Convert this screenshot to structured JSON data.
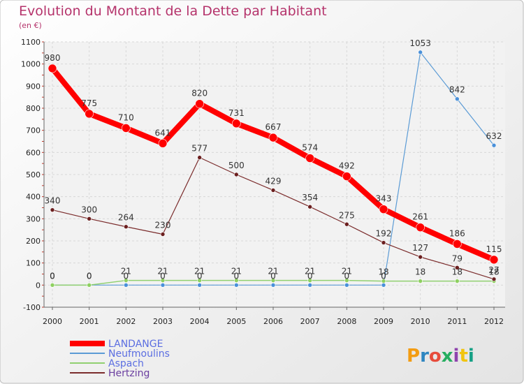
{
  "brand": {
    "text": "Proxiti",
    "colors": [
      "#f39c12",
      "#2e86c1",
      "#e74c3c",
      "#27ae60",
      "#8e44ad",
      "#f1c40f",
      "#16a085"
    ]
  },
  "chart_data": {
    "type": "line",
    "title": "Evolution du Montant de la Dette par Habitant",
    "subtitle": "(en €)",
    "x": [
      "2000",
      "2001",
      "2002",
      "2003",
      "2004",
      "2005",
      "2006",
      "2007",
      "2008",
      "2009",
      "2010",
      "2011",
      "2012"
    ],
    "ylim": [
      -100,
      1100
    ],
    "yticks": [
      -100,
      0,
      100,
      200,
      300,
      400,
      500,
      600,
      700,
      800,
      900,
      1000,
      1100
    ],
    "grid": true,
    "legend_position": "bottom-left",
    "series": [
      {
        "name": "Neufmoulins",
        "color": "#5b9bd5",
        "values": [
          0,
          0,
          0,
          0,
          0,
          0,
          0,
          0,
          0,
          0,
          1053,
          842,
          632
        ],
        "labels": [
          "0",
          "0",
          "0",
          "0",
          "0",
          "0",
          "0",
          "0",
          "0",
          "0",
          "1053",
          "842",
          "632"
        ]
      },
      {
        "name": "Aspach",
        "color": "#90d070",
        "values": [
          0,
          0,
          21,
          21,
          21,
          21,
          21,
          21,
          21,
          18,
          18,
          18,
          18
        ],
        "labels": [
          "0",
          "0",
          "21",
          "21",
          "21",
          "21",
          "21",
          "21",
          "21",
          "18",
          "18",
          "18",
          "18"
        ]
      },
      {
        "name": "Hertzing",
        "color": "#7b2c2c",
        "values": [
          340,
          300,
          264,
          230,
          577,
          500,
          429,
          354,
          275,
          192,
          127,
          79,
          27
        ],
        "labels": [
          "340",
          "300",
          "264",
          "230",
          "577",
          "500",
          "429",
          "354",
          "275",
          "192",
          "127",
          "79",
          "27"
        ]
      },
      {
        "name": "LANDANGE",
        "color": "#ff0000",
        "values": [
          980,
          775,
          710,
          641,
          820,
          731,
          667,
          574,
          492,
          343,
          261,
          186,
          115
        ],
        "labels": [
          "980",
          "775",
          "710",
          "641",
          "820",
          "731",
          "667",
          "574",
          "492",
          "343",
          "261",
          "186",
          "115"
        ]
      }
    ],
    "legend": [
      {
        "name": "LANDANGE",
        "color": "#ff0000"
      },
      {
        "name": "Neufmoulins",
        "color": "#5b9bd5"
      },
      {
        "name": "Aspach",
        "color": "#90d070"
      },
      {
        "name": "Hertzing",
        "color": "#7b2c2c"
      }
    ]
  }
}
